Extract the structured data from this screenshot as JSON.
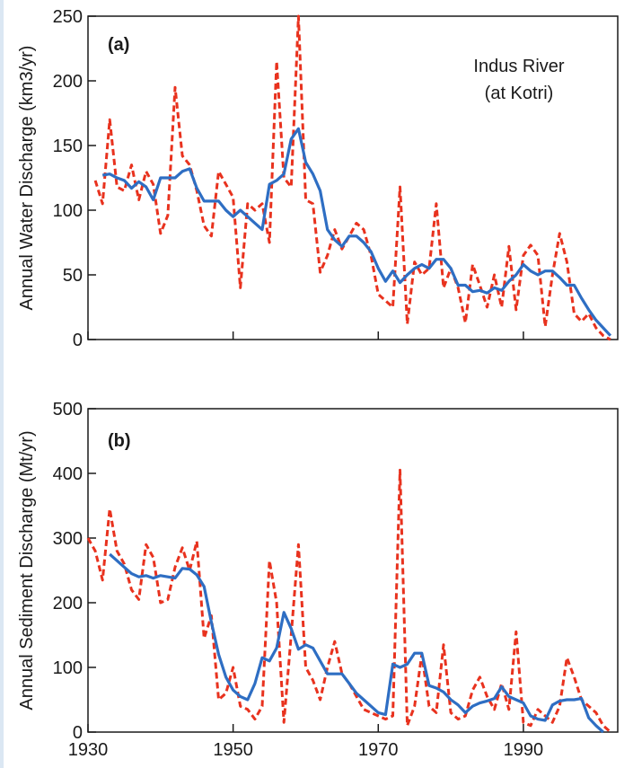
{
  "chart_data": [
    {
      "type": "line",
      "panel_label": "(a)",
      "ylabel": "Annual Water Discharge (km3/yr)",
      "annotation": [
        "Indus River",
        "(at Kotri)"
      ],
      "xlim": [
        1930,
        2003
      ],
      "ylim": [
        0,
        250
      ],
      "xticks": [
        1930,
        1950,
        1970,
        1990
      ],
      "yticks": [
        0,
        50,
        100,
        150,
        200,
        250
      ],
      "series": [
        {
          "style": "dashed",
          "color": "#e8321e",
          "x": [
            1931,
            1932,
            1933,
            1934,
            1935,
            1936,
            1937,
            1938,
            1939,
            1940,
            1941,
            1942,
            1943,
            1944,
            1945,
            1946,
            1947,
            1948,
            1949,
            1950,
            1951,
            1952,
            1953,
            1954,
            1955,
            1956,
            1957,
            1958,
            1959,
            1960,
            1961,
            1962,
            1963,
            1964,
            1965,
            1966,
            1967,
            1968,
            1969,
            1970,
            1971,
            1972,
            1973,
            1974,
            1975,
            1976,
            1977,
            1978,
            1979,
            1980,
            1981,
            1982,
            1983,
            1984,
            1985,
            1986,
            1987,
            1988,
            1989,
            1990,
            1991,
            1992,
            1993,
            1994,
            1995,
            1996,
            1997,
            1998,
            1999,
            2000,
            2001,
            2002
          ],
          "values": [
            123,
            105,
            170,
            118,
            115,
            135,
            108,
            130,
            120,
            82,
            96,
            195,
            142,
            135,
            115,
            88,
            80,
            130,
            120,
            110,
            40,
            105,
            100,
            105,
            75,
            215,
            125,
            118,
            250,
            108,
            105,
            52,
            65,
            85,
            70,
            80,
            90,
            85,
            65,
            35,
            30,
            25,
            118,
            12,
            60,
            50,
            55,
            105,
            40,
            55,
            40,
            13,
            58,
            42,
            25,
            50,
            25,
            72,
            23,
            65,
            73,
            65,
            10,
            50,
            82,
            60,
            20,
            14,
            20,
            9,
            3,
            0
          ]
        },
        {
          "style": "solid",
          "color": "#2e6ec3",
          "x": [
            1932,
            1933,
            1934,
            1935,
            1936,
            1937,
            1938,
            1939,
            1940,
            1941,
            1942,
            1943,
            1944,
            1945,
            1946,
            1947,
            1948,
            1949,
            1950,
            1951,
            1952,
            1953,
            1954,
            1955,
            1956,
            1957,
            1958,
            1959,
            1960,
            1961,
            1962,
            1963,
            1964,
            1965,
            1966,
            1967,
            1968,
            1969,
            1970,
            1971,
            1972,
            1973,
            1974,
            1975,
            1976,
            1977,
            1978,
            1979,
            1980,
            1981,
            1982,
            1983,
            1984,
            1985,
            1986,
            1987,
            1988,
            1989,
            1990,
            1991,
            1992,
            1993,
            1994,
            1995,
            1996,
            1997,
            1998,
            1999,
            2000,
            2001,
            2002
          ],
          "values": [
            127,
            128,
            125,
            123,
            117,
            122,
            118,
            108,
            125,
            125,
            125,
            130,
            132,
            117,
            107,
            107,
            107,
            100,
            95,
            100,
            95,
            90,
            85,
            120,
            123,
            128,
            155,
            163,
            137,
            128,
            115,
            85,
            77,
            72,
            80,
            80,
            75,
            68,
            55,
            45,
            53,
            44,
            50,
            55,
            58,
            55,
            62,
            62,
            55,
            42,
            42,
            37,
            38,
            36,
            40,
            38,
            45,
            50,
            58,
            53,
            50,
            53,
            53,
            48,
            42,
            42,
            32,
            23,
            15,
            9,
            3
          ]
        }
      ]
    },
    {
      "type": "line",
      "panel_label": "(b)",
      "ylabel": "Annual Sediment Discharge (Mt/yr)",
      "xlim": [
        1930,
        2003
      ],
      "ylim": [
        0,
        500
      ],
      "xticks": [
        1930,
        1950,
        1970,
        1990
      ],
      "xtick_labels": [
        "1930",
        "1950",
        "1970",
        "1990"
      ],
      "yticks": [
        0,
        100,
        200,
        300,
        400,
        500
      ],
      "series": [
        {
          "style": "dashed",
          "color": "#e8321e",
          "x": [
            1930,
            1931,
            1932,
            1933,
            1934,
            1935,
            1936,
            1937,
            1938,
            1939,
            1940,
            1941,
            1942,
            1943,
            1944,
            1945,
            1946,
            1947,
            1948,
            1949,
            1950,
            1951,
            1952,
            1953,
            1954,
            1955,
            1956,
            1957,
            1958,
            1959,
            1960,
            1961,
            1962,
            1963,
            1964,
            1965,
            1966,
            1967,
            1968,
            1969,
            1970,
            1971,
            1972,
            1973,
            1974,
            1975,
            1976,
            1977,
            1978,
            1979,
            1980,
            1981,
            1982,
            1983,
            1984,
            1985,
            1986,
            1987,
            1988,
            1989,
            1990,
            1991,
            1992,
            1993,
            1994,
            1995,
            1996,
            1997,
            1998,
            1999,
            2000,
            2001,
            2002
          ],
          "values": [
            300,
            280,
            235,
            345,
            280,
            260,
            220,
            205,
            290,
            270,
            200,
            205,
            255,
            285,
            250,
            295,
            145,
            180,
            50,
            60,
            100,
            40,
            35,
            20,
            40,
            265,
            200,
            15,
            150,
            290,
            100,
            80,
            50,
            100,
            140,
            90,
            75,
            55,
            35,
            30,
            25,
            20,
            25,
            405,
            10,
            40,
            120,
            40,
            30,
            135,
            30,
            20,
            25,
            65,
            85,
            55,
            35,
            75,
            35,
            155,
            15,
            10,
            35,
            25,
            15,
            40,
            115,
            85,
            50,
            40,
            30,
            10,
            0
          ]
        },
        {
          "style": "solid",
          "color": "#2e6ec3",
          "x": [
            1933,
            1934,
            1935,
            1936,
            1937,
            1938,
            1939,
            1940,
            1941,
            1942,
            1943,
            1944,
            1945,
            1946,
            1947,
            1948,
            1949,
            1950,
            1951,
            1952,
            1953,
            1954,
            1955,
            1956,
            1957,
            1958,
            1959,
            1960,
            1961,
            1962,
            1963,
            1964,
            1965,
            1966,
            1967,
            1968,
            1969,
            1970,
            1971,
            1972,
            1973,
            1974,
            1975,
            1976,
            1977,
            1978,
            1979,
            1980,
            1981,
            1982,
            1983,
            1984,
            1985,
            1986,
            1987,
            1988,
            1989,
            1990,
            1991,
            1992,
            1993,
            1994,
            1995,
            1996,
            1997,
            1998,
            1999,
            2000,
            2001
          ],
          "values": [
            275,
            265,
            255,
            245,
            240,
            242,
            238,
            242,
            240,
            238,
            253,
            252,
            243,
            225,
            170,
            120,
            85,
            65,
            55,
            50,
            75,
            115,
            110,
            130,
            185,
            160,
            128,
            135,
            130,
            110,
            90,
            90,
            90,
            75,
            60,
            50,
            40,
            30,
            27,
            105,
            100,
            105,
            122,
            122,
            72,
            68,
            62,
            50,
            42,
            30,
            40,
            45,
            48,
            52,
            70,
            55,
            50,
            45,
            25,
            20,
            18,
            42,
            48,
            50,
            50,
            52,
            22,
            10,
            0
          ]
        }
      ]
    }
  ]
}
